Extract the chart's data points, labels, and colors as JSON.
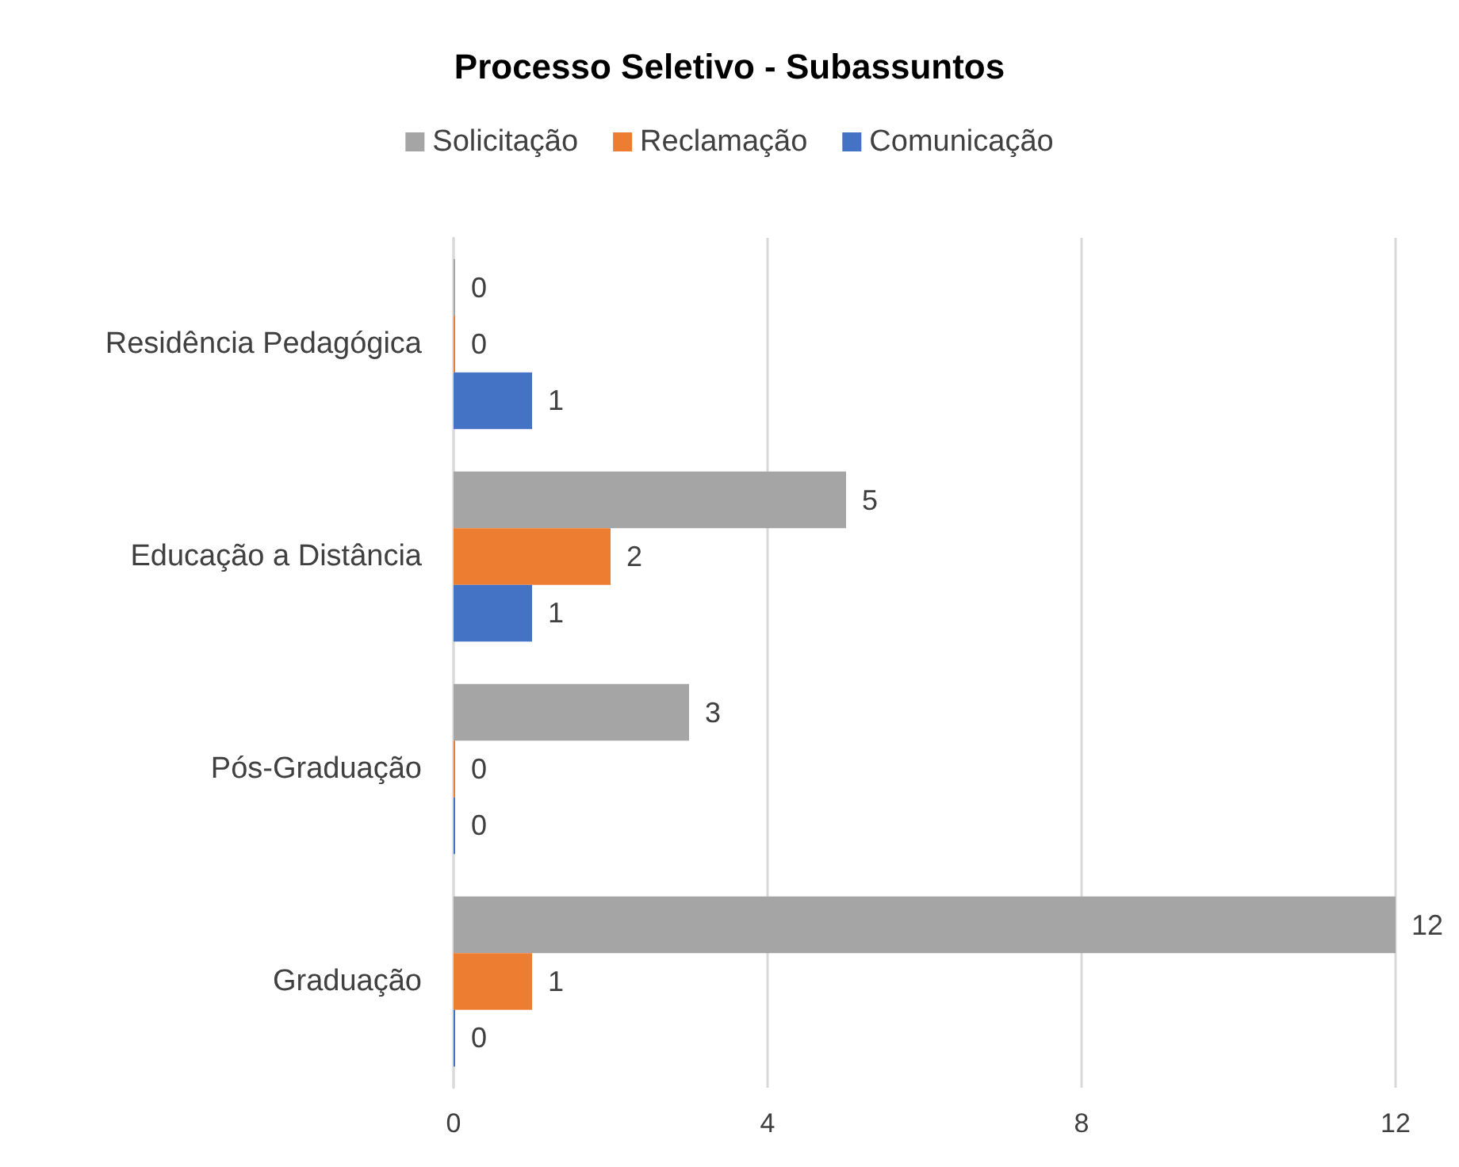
{
  "chart_data": {
    "type": "bar",
    "title": "Processo Seletivo - Subassuntos",
    "orientation": "horizontal",
    "categories": [
      "Residência Pedagógica",
      "Educação a Distância",
      "Pós-Graduação",
      "Graduação"
    ],
    "series": [
      {
        "name": "Solicitação",
        "color": "#a5a5a5",
        "values": [
          0,
          5,
          3,
          12
        ]
      },
      {
        "name": "Reclamação",
        "color": "#ed7d31",
        "values": [
          0,
          2,
          0,
          1
        ]
      },
      {
        "name": "Comunicação",
        "color": "#4472c4",
        "values": [
          1,
          1,
          0,
          0
        ]
      }
    ],
    "xlim": [
      0,
      12
    ],
    "xticks": [
      0,
      4,
      8,
      12
    ],
    "grid": "x",
    "legend": "top",
    "data_labels": true
  }
}
